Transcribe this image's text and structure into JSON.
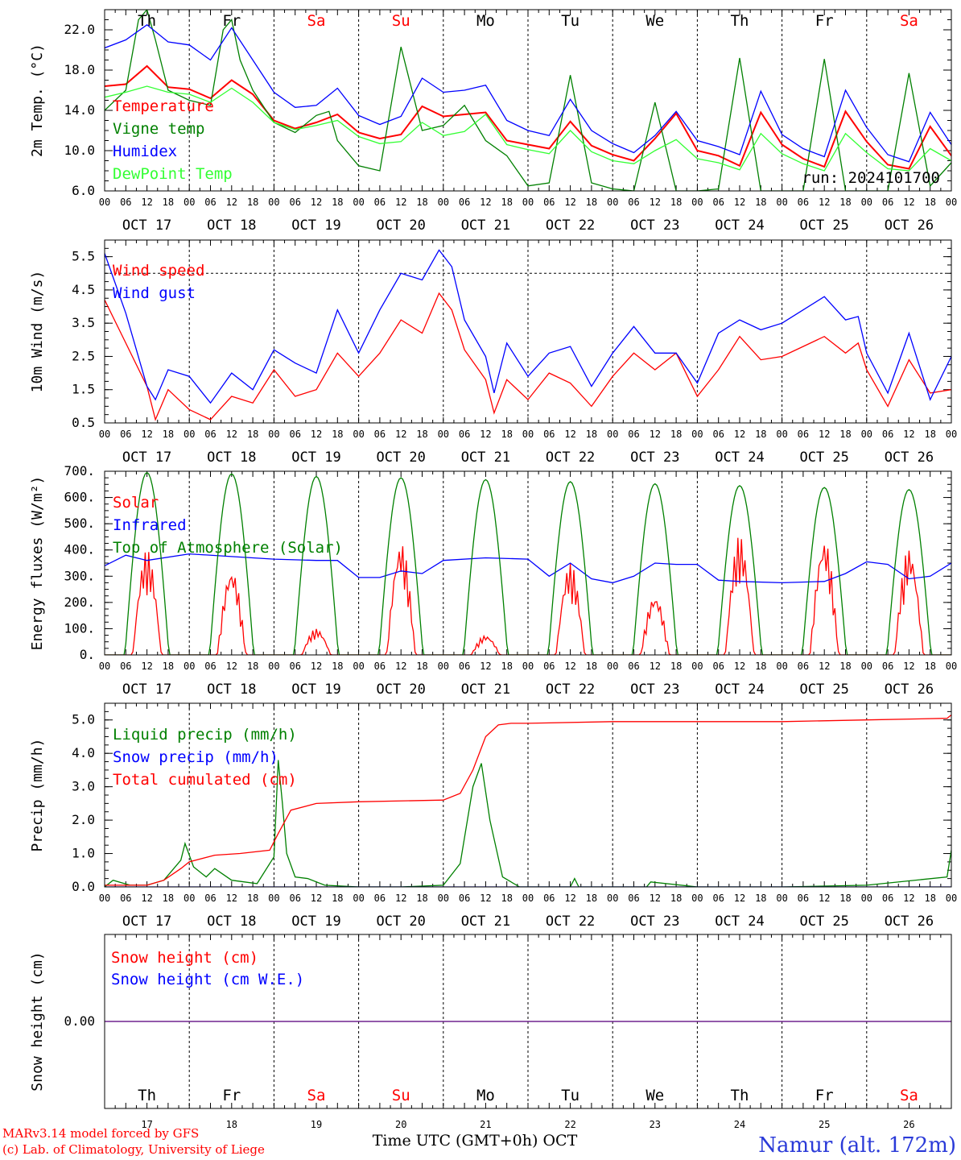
{
  "chart_data": {
    "type": "line",
    "station": "Namur (alt. 172m)",
    "run_label": "run: 2024101700",
    "credits": [
      "MARv3.14 model forced by GFS",
      "(c) Lab. of Climatology, University of Liege"
    ],
    "xlabel": "Time UTC (GMT+0h) OCT",
    "hour_labels": [
      "00",
      "06",
      "12",
      "18"
    ],
    "date_labels": [
      "OCT 17",
      "OCT 18",
      "OCT 19",
      "OCT 20",
      "OCT 21",
      "OCT 22",
      "OCT 23",
      "OCT 24",
      "OCT 25",
      "OCT 26"
    ],
    "weekdays": [
      "Th",
      "Fr",
      "Sa",
      "Su",
      "Mo",
      "Tu",
      "We",
      "Th",
      "Fr",
      "Sa"
    ],
    "weekend_flags": [
      false,
      false,
      true,
      true,
      false,
      false,
      false,
      false,
      false,
      true
    ],
    "bottom_day_numbers": [
      "17",
      "18",
      "19",
      "20",
      "21",
      "22",
      "23",
      "24",
      "25",
      "26"
    ],
    "colors": {
      "red": "#ff0000",
      "green": "#008000",
      "blue": "#0000ff",
      "lightgreen": "#33ff33",
      "darkgreen": "#108810",
      "purple": "#6a1a8a",
      "station": "#2a3ad8"
    },
    "panels": [
      {
        "id": "temperature",
        "ylabel": "2m Temp. (°C)",
        "ylim": [
          6,
          24
        ],
        "yticks": [
          "6.0",
          "10.0",
          "14.0",
          "18.0",
          "22.0"
        ],
        "ytick_values": [
          6,
          10,
          14,
          18,
          22
        ],
        "series": [
          {
            "name": "Temperature",
            "color": "#ff0000",
            "x": [
              0,
              0.25,
              0.5,
              0.75,
              1,
              1.25,
              1.5,
              1.75,
              2,
              2.25,
              2.5,
              2.75,
              3,
              3.25,
              3.5,
              3.75,
              4,
              4.25,
              4.5,
              4.75,
              5,
              5.25,
              5.5,
              5.75,
              6,
              6.25,
              6.5,
              6.75,
              7,
              7.25,
              7.5,
              7.75,
              8,
              8.25,
              8.5,
              8.75,
              9,
              9.25,
              9.5,
              9.75,
              10
            ],
            "y": [
              16.4,
              16.6,
              18.4,
              16.3,
              16.1,
              15.2,
              17.0,
              15.6,
              13.0,
              12.2,
              12.8,
              13.6,
              11.8,
              11.2,
              11.6,
              14.4,
              13.4,
              13.6,
              13.8,
              11.0,
              10.6,
              10.2,
              12.9,
              10.5,
              9.6,
              9.0,
              11.2,
              13.7,
              10.0,
              9.5,
              8.5,
              13.8,
              10.6,
              9.2,
              8.4,
              13.9,
              10.9,
              8.6,
              8.2,
              12.4,
              9.5
            ]
          },
          {
            "name": "Vigne temp",
            "color": "#008000",
            "x": [
              0,
              0.25,
              0.4,
              0.5,
              0.6,
              0.75,
              1,
              1.25,
              1.4,
              1.5,
              1.6,
              1.75,
              2,
              2.25,
              2.5,
              2.65,
              2.75,
              3,
              3.25,
              3.5,
              3.75,
              4,
              4.25,
              4.5,
              4.75,
              5,
              5.25,
              5.5,
              5.75,
              6,
              6.25,
              6.5,
              6.75,
              7,
              7.25,
              7.5,
              7.75,
              8,
              8.25,
              8.5,
              8.75,
              9,
              9.25,
              9.5,
              9.75,
              10
            ],
            "y": [
              14.0,
              16.0,
              23.0,
              24.0,
              21.0,
              16.0,
              15.0,
              14.5,
              22.0,
              23.0,
              19.0,
              16.0,
              12.8,
              11.8,
              13.5,
              13.9,
              11.0,
              8.5,
              8.0,
              20.3,
              12.0,
              12.5,
              14.5,
              11.0,
              9.5,
              6.5,
              6.8,
              17.5,
              6.8,
              6.2,
              6.0,
              14.8,
              6.0,
              6.0,
              6.2,
              19.2,
              6.0,
              6.0,
              6.0,
              19.1,
              6.0,
              6.0,
              6.0,
              17.7,
              6.5,
              8.8
            ]
          },
          {
            "name": "Humidex",
            "color": "#0000ff",
            "x": [
              0,
              0.25,
              0.5,
              0.75,
              1,
              1.25,
              1.5,
              1.75,
              2,
              2.25,
              2.5,
              2.75,
              3,
              3.25,
              3.5,
              3.75,
              4,
              4.25,
              4.5,
              4.75,
              5,
              5.25,
              5.5,
              5.75,
              6,
              6.25,
              6.5,
              6.75,
              7,
              7.25,
              7.5,
              7.75,
              8,
              8.25,
              8.5,
              8.75,
              9,
              9.25,
              9.5,
              9.75,
              10
            ],
            "y": [
              20.2,
              21.0,
              22.5,
              20.8,
              20.5,
              19.0,
              22.2,
              19.0,
              15.8,
              14.3,
              14.5,
              16.2,
              13.5,
              12.6,
              13.4,
              17.2,
              15.8,
              16.0,
              16.5,
              13.0,
              12.0,
              11.5,
              15.1,
              12.0,
              10.7,
              9.8,
              11.5,
              13.9,
              11.0,
              10.4,
              9.6,
              15.9,
              11.6,
              10.2,
              9.4,
              16.0,
              12.3,
              9.6,
              8.9,
              13.8,
              10.6
            ]
          },
          {
            "name": "DewPoint Temp",
            "color": "#33ff33",
            "x": [
              0,
              0.25,
              0.5,
              0.75,
              1,
              1.25,
              1.5,
              1.75,
              2,
              2.25,
              2.5,
              2.75,
              3,
              3.25,
              3.5,
              3.75,
              4,
              4.25,
              4.5,
              4.75,
              5,
              5.25,
              5.5,
              5.75,
              6,
              6.25,
              6.5,
              6.75,
              7,
              7.25,
              7.5,
              7.75,
              8,
              8.25,
              8.5,
              8.75,
              9,
              9.25,
              9.5,
              9.75,
              10
            ],
            "y": [
              15.3,
              15.8,
              16.4,
              15.8,
              15.6,
              14.8,
              16.2,
              14.8,
              12.8,
              12.1,
              12.5,
              13.0,
              11.4,
              10.7,
              10.9,
              12.8,
              11.5,
              11.9,
              13.6,
              10.6,
              10.1,
              9.7,
              12.0,
              9.9,
              9.0,
              8.7,
              10.0,
              11.1,
              9.2,
              8.8,
              8.1,
              11.7,
              9.7,
              8.7,
              8.0,
              11.7,
              9.8,
              8.2,
              8.0,
              10.2,
              9.0
            ]
          }
        ]
      },
      {
        "id": "wind",
        "ylabel": "10m Wind (m/s)",
        "ylim": [
          0.5,
          6.0
        ],
        "yticks": [
          "0.5",
          "1.5",
          "2.5",
          "3.5",
          "4.5",
          "5.5"
        ],
        "ytick_values": [
          0.5,
          1.5,
          2.5,
          3.5,
          4.5,
          5.5
        ],
        "ref_line": 5.0,
        "series": [
          {
            "name": "Wind speed",
            "color": "#ff0000",
            "x": [
              0,
              0.25,
              0.5,
              0.6,
              0.75,
              1,
              1.25,
              1.5,
              1.75,
              2,
              2.25,
              2.5,
              2.75,
              3,
              3.25,
              3.5,
              3.75,
              3.95,
              4.1,
              4.25,
              4.5,
              4.6,
              4.75,
              5,
              5.25,
              5.5,
              5.75,
              6,
              6.25,
              6.5,
              6.75,
              7,
              7.25,
              7.5,
              7.75,
              8,
              8.25,
              8.5,
              8.75,
              8.9,
              9,
              9.25,
              9.5,
              9.75,
              10
            ],
            "y": [
              4.2,
              2.9,
              1.6,
              0.6,
              1.5,
              0.9,
              0.6,
              1.3,
              1.1,
              2.1,
              1.3,
              1.5,
              2.6,
              1.9,
              2.6,
              3.6,
              3.2,
              4.4,
              3.9,
              2.7,
              1.8,
              0.8,
              1.8,
              1.2,
              2.0,
              1.7,
              1.0,
              1.9,
              2.6,
              2.1,
              2.6,
              1.3,
              2.1,
              3.1,
              2.4,
              2.5,
              2.8,
              3.1,
              2.6,
              2.9,
              2.1,
              1.0,
              2.4,
              1.4,
              1.5
            ]
          },
          {
            "name": "Wind gust",
            "color": "#0000ff",
            "x": [
              0,
              0.25,
              0.5,
              0.6,
              0.75,
              1,
              1.25,
              1.5,
              1.75,
              2,
              2.25,
              2.5,
              2.75,
              3,
              3.25,
              3.5,
              3.75,
              3.95,
              4.1,
              4.25,
              4.5,
              4.6,
              4.75,
              5,
              5.25,
              5.5,
              5.75,
              6,
              6.25,
              6.5,
              6.75,
              7,
              7.25,
              7.5,
              7.75,
              8,
              8.25,
              8.5,
              8.75,
              8.9,
              9,
              9.25,
              9.5,
              9.75,
              10
            ],
            "y": [
              5.6,
              3.8,
              1.6,
              1.2,
              2.1,
              1.9,
              1.1,
              2.0,
              1.5,
              2.7,
              2.3,
              2.0,
              3.9,
              2.6,
              3.9,
              5.0,
              4.8,
              5.7,
              5.2,
              3.6,
              2.5,
              1.4,
              2.9,
              1.9,
              2.6,
              2.8,
              1.6,
              2.6,
              3.4,
              2.6,
              2.6,
              1.7,
              3.2,
              3.6,
              3.3,
              3.5,
              3.9,
              4.3,
              3.6,
              3.7,
              2.6,
              1.4,
              3.2,
              1.2,
              2.5
            ]
          }
        ]
      },
      {
        "id": "energy",
        "ylabel": "Energy fluxes (W/m²)",
        "ylim": [
          0,
          700
        ],
        "yticks": [
          "0.",
          "100.",
          "200.",
          "300.",
          "400.",
          "500.",
          "600.",
          "700."
        ],
        "ytick_values": [
          0,
          100,
          200,
          300,
          400,
          500,
          600,
          700
        ],
        "series": [
          {
            "name": "Solar",
            "color": "#ff0000",
            "type": "daily",
            "peaks": [
              400,
              330,
              100,
              430,
              75,
              350,
              230,
              455,
              445,
              410
            ]
          },
          {
            "name": "Infrared",
            "color": "#0000ff",
            "x": [
              0,
              0.25,
              0.5,
              1,
              1.5,
              2,
              2.5,
              2.75,
              3,
              3.25,
              3.5,
              3.75,
              4,
              4.5,
              5,
              5.25,
              5.5,
              5.75,
              6,
              6.25,
              6.5,
              6.75,
              7,
              7.25,
              7.5,
              8,
              8.5,
              8.75,
              9,
              9.25,
              9.5,
              9.75,
              10
            ],
            "y": [
              340,
              380,
              360,
              385,
              375,
              365,
              360,
              360,
              295,
              295,
              320,
              310,
              360,
              370,
              365,
              300,
              350,
              290,
              275,
              300,
              350,
              345,
              345,
              285,
              280,
              275,
              280,
              310,
              355,
              345,
              290,
              300,
              350
            ]
          },
          {
            "name": "Top of Atmosphere (Solar)",
            "color": "#008000",
            "type": "daily",
            "peaks": [
              695,
              690,
              680,
              675,
              668,
              660,
              652,
              645,
              638,
              630
            ]
          }
        ]
      },
      {
        "id": "precip",
        "ylabel": "Precip (mm/h)",
        "ylim": [
          0,
          5.5
        ],
        "yticks": [
          "0.0",
          "1.0",
          "2.0",
          "3.0",
          "4.0",
          "5.0"
        ],
        "ytick_values": [
          0,
          1,
          2,
          3,
          4,
          5
        ],
        "series": [
          {
            "name": "Liquid precip (mm/h)",
            "color": "#008000",
            "x": [
              0,
              0.1,
              0.3,
              0.5,
              0.7,
              0.9,
              0.95,
              1.05,
              1.2,
              1.3,
              1.5,
              1.8,
              2.0,
              2.05,
              2.1,
              2.15,
              2.25,
              2.4,
              2.6,
              3.0,
              3.5,
              4.0,
              4.2,
              4.35,
              4.45,
              4.55,
              4.7,
              4.9,
              5.0,
              5.5,
              5.55,
              5.6,
              6.0,
              6.4,
              6.45,
              7.0,
              8.0,
              9.0,
              9.95,
              10.0
            ],
            "y": [
              0,
              0.2,
              0.05,
              0.05,
              0.2,
              0.8,
              1.3,
              0.6,
              0.3,
              0.55,
              0.2,
              0.1,
              0.9,
              3.8,
              2.5,
              1.0,
              0.3,
              0.25,
              0.05,
              0,
              0,
              0.05,
              0.7,
              3.0,
              3.7,
              2.0,
              0.3,
              0,
              0,
              0,
              0.25,
              0,
              0,
              0,
              0.15,
              0,
              0,
              0.05,
              0.3,
              1.1
            ]
          },
          {
            "name": "Snow precip (mm/h)",
            "color": "#0000ff",
            "x": [
              0,
              10
            ],
            "y": [
              0,
              0
            ]
          },
          {
            "name": "Total cumulated (cm)",
            "color": "#ff0000",
            "x": [
              0,
              0.5,
              0.7,
              0.9,
              1.0,
              1.3,
              1.6,
              1.95,
              2.05,
              2.2,
              2.5,
              3.0,
              4.0,
              4.2,
              4.35,
              4.5,
              4.65,
              4.8,
              5.0,
              6.0,
              8.0,
              9.0,
              9.95,
              10.0
            ],
            "y": [
              0.05,
              0.05,
              0.2,
              0.55,
              0.75,
              0.95,
              1.0,
              1.1,
              1.6,
              2.3,
              2.5,
              2.55,
              2.6,
              2.8,
              3.5,
              4.5,
              4.85,
              4.9,
              4.9,
              4.95,
              4.95,
              5.0,
              5.05,
              5.15
            ]
          }
        ]
      },
      {
        "id": "snow",
        "ylabel": "Snow height (cm)",
        "ylim": [
          -1,
          1
        ],
        "yticks": [
          "0.00"
        ],
        "ytick_values": [
          0
        ],
        "series": [
          {
            "name": "Snow height (cm)",
            "color": "#ff0000",
            "x": [
              0,
              10
            ],
            "y": [
              0,
              0
            ]
          },
          {
            "name": "Snow height (cm W.E.)",
            "color": "#0000ff",
            "x": [
              0,
              10
            ],
            "y": [
              0,
              0
            ]
          }
        ]
      }
    ]
  }
}
